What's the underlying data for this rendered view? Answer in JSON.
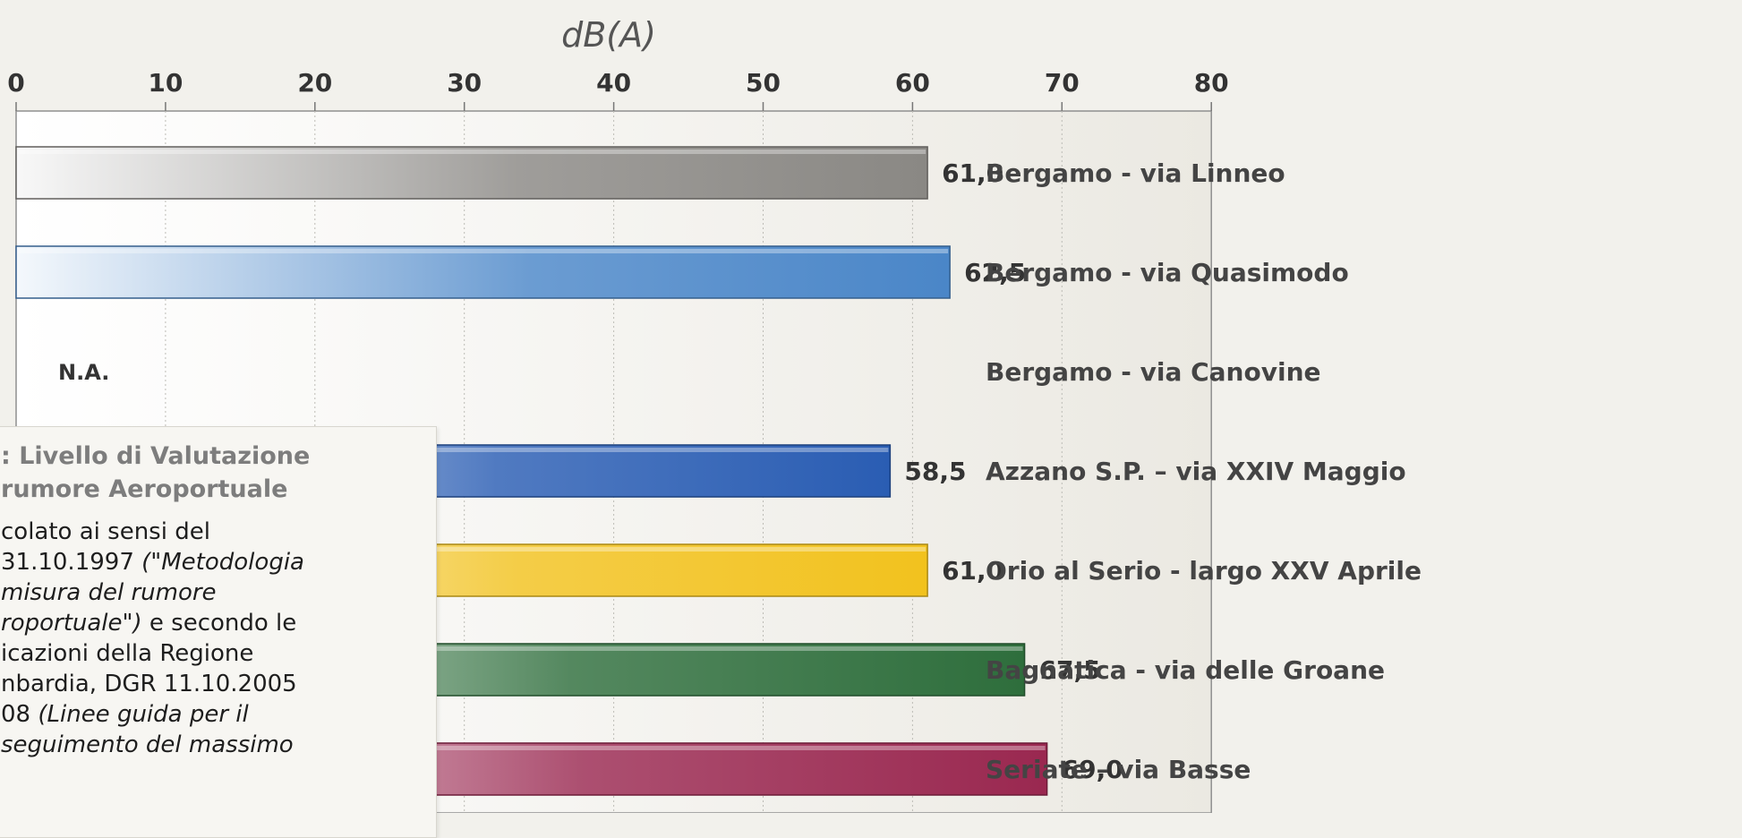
{
  "chart_data": {
    "type": "bar",
    "orientation": "horizontal",
    "title": "",
    "xlabel": "dB(A)",
    "ylabel": "",
    "xlim": [
      0,
      80
    ],
    "ticks": [
      "0",
      "10",
      "20",
      "30",
      "40",
      "50",
      "60",
      "70",
      "80"
    ],
    "grid": true,
    "categories": [
      "Bergamo - via Linneo",
      "Bergamo - via Quasimodo",
      "Bergamo - via Canovine",
      "Azzano S.P. – via XXIV Maggio",
      "Orio al Serio - largo XXV Aprile",
      "Bagnatica - via delle Groane",
      "Seriate – via Basse"
    ],
    "values": [
      61.0,
      62.5,
      null,
      58.5,
      61.0,
      67.5,
      69.0
    ],
    "value_labels": [
      "61,0",
      "62,5",
      "N.A.",
      "58,5",
      "61,0",
      "67,5",
      "69,0"
    ],
    "colors": [
      "#8a8884",
      "#4a86c8",
      null,
      "#2a5db3",
      "#f2c21e",
      "#2e6e3c",
      "#9a2850"
    ]
  },
  "note": {
    "title": ": Livello di Valutazione\n rumore Aeroportuale",
    "lines": [
      [
        {
          "t": "colato ai sensi del",
          "i": false
        }
      ],
      [
        {
          "t": "31.10.1997 ",
          "i": false
        },
        {
          "t": "(\"Metodologia",
          "i": true
        }
      ],
      [
        {
          "t": "misura del rumore",
          "i": true
        }
      ],
      [
        {
          "t": "roportuale\")",
          "i": true
        },
        {
          "t": " e secondo le",
          "i": false
        }
      ],
      [
        {
          "t": "icazioni della Regione",
          "i": false
        }
      ],
      [
        {
          "t": "nbardia, DGR 11.10.2005",
          "i": false
        }
      ],
      [
        {
          "t": "08 ",
          "i": false
        },
        {
          "t": "(Linee guida per il",
          "i": true
        }
      ],
      [
        {
          "t": "seguimento del massimo",
          "i": true
        }
      ]
    ]
  }
}
